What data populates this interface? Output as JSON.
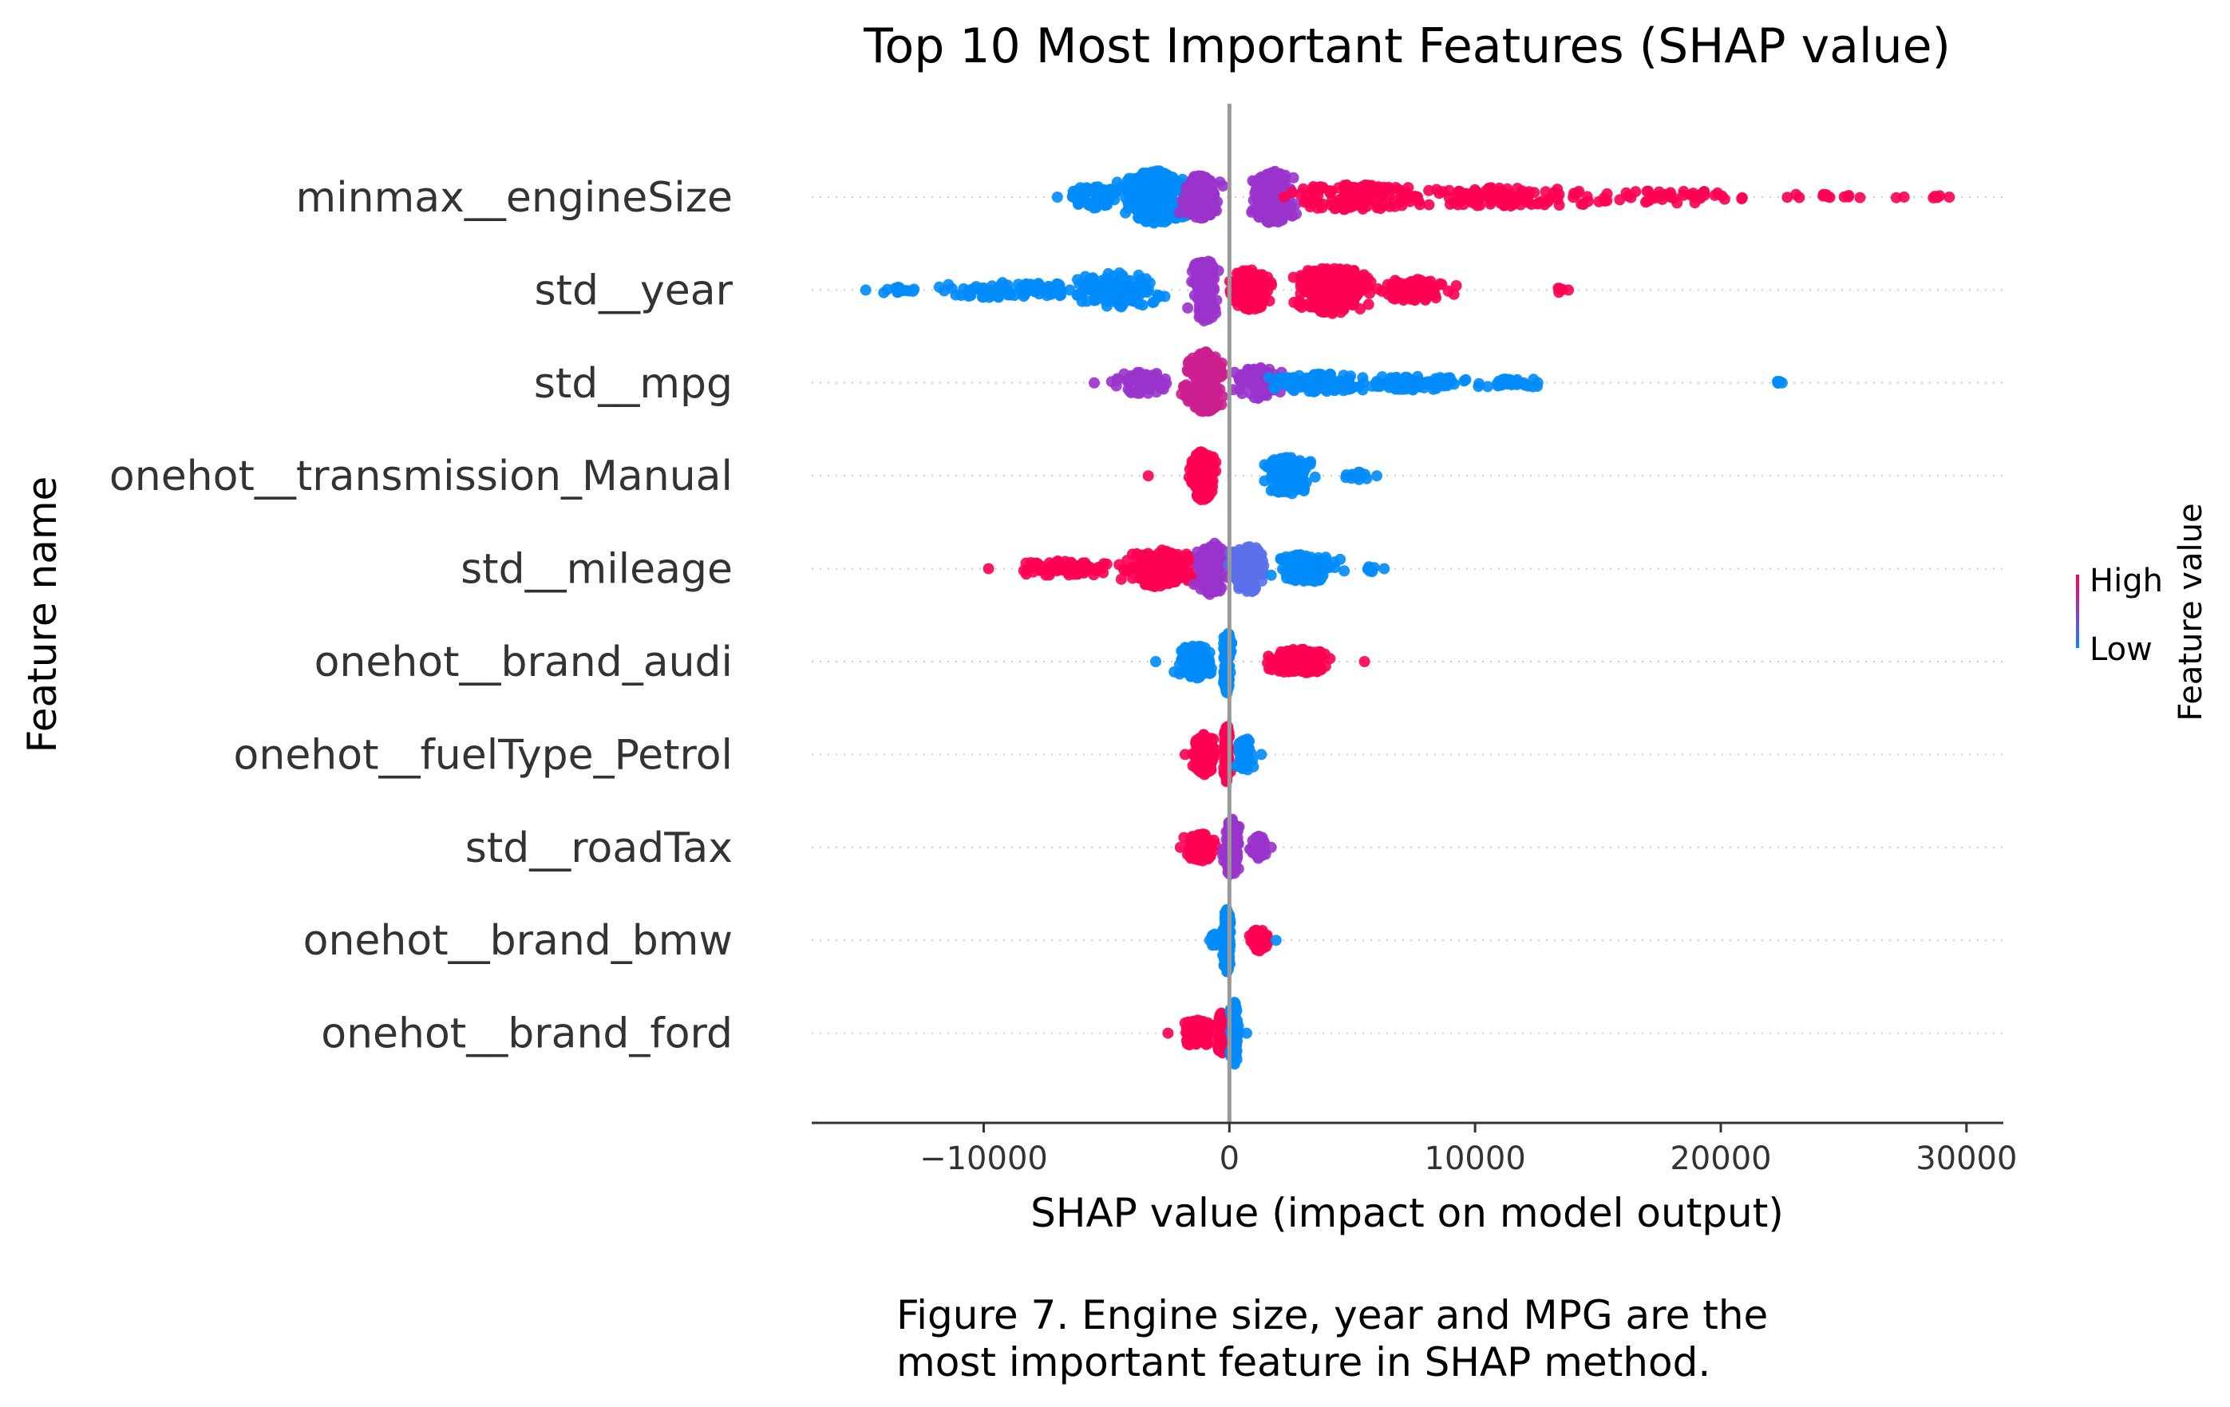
{
  "chart_data": {
    "type": "scatter",
    "subtype": "shap-beeswarm",
    "title": "Top 10 Most Important Features (SHAP value)",
    "xlabel": "SHAP value (impact on model output)",
    "ylabel": "Feature name",
    "xlim": [
      -17000,
      31500
    ],
    "xticks": [
      -10000,
      0,
      10000,
      20000,
      30000
    ],
    "xtick_labels": [
      "−10000",
      "0",
      "10000",
      "20000",
      "30000"
    ],
    "colorbar": {
      "label": "Feature value",
      "high": "High",
      "low": "Low"
    },
    "colors": {
      "high": "#ff0052",
      "mid": "#9933cc",
      "low": "#008bfb",
      "zero_line": "#999999"
    },
    "features": [
      {
        "name": "minmax__engineSize",
        "min": -7000,
        "max": 29300,
        "summary": "low values (blue) at -7000 to 0, densest near -3000; high values (red) from 1000 to 29300 with long right tail"
      },
      {
        "name": "std__year",
        "min": -14800,
        "max": 13800,
        "summary": "low values (blue) long left tail to -14800; high values (red) 0 to 10000, densest near 4000, outliers near 13500"
      },
      {
        "name": "std__mpg",
        "min": -5500,
        "max": 22500,
        "summary": "high values (red/purple) -5500 to 0; low values (blue) 0 to 15000, outliers near 22500"
      },
      {
        "name": "onehot__transmission_Manual",
        "min": -3300,
        "max": 6000,
        "summary": "high (red) clustered -3300 to -500; low (blue) clustered 1000 to 6000"
      },
      {
        "name": "std__mileage",
        "min": -9800,
        "max": 6300,
        "summary": "high (red) left tail to -9800; low (blue) right tail to 6300; dense near 0"
      },
      {
        "name": "onehot__brand_audi",
        "min": -3000,
        "max": 5500,
        "summary": "low (blue) -3000 to 0; high (red) 800 to 5500"
      },
      {
        "name": "onehot__fuelType_Petrol",
        "min": -1800,
        "max": 1300,
        "summary": "high (red) -1800 to 0; low (blue) 0 to 1300"
      },
      {
        "name": "std__roadTax",
        "min": -2000,
        "max": 1700,
        "summary": "mixed, mostly red/purple -2000 to 1700"
      },
      {
        "name": "onehot__brand_bmw",
        "min": -800,
        "max": 1900,
        "summary": "low (blue) near 0; high (red) 500 to 1900"
      },
      {
        "name": "onehot__brand_ford",
        "min": -2500,
        "max": 700,
        "summary": "high (red) -2500 to 0; low (blue) 0 to 700"
      }
    ]
  },
  "caption": {
    "line1": "Figure 7. Engine size, year and MPG are the",
    "line2": "most important feature in SHAP method."
  }
}
